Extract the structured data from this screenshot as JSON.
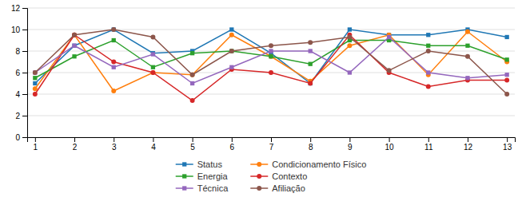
{
  "chart_data": {
    "type": "line",
    "x": [
      1,
      2,
      3,
      4,
      5,
      6,
      7,
      8,
      9,
      10,
      11,
      12,
      13
    ],
    "series": [
      {
        "name": "Status",
        "marker": "square",
        "values": [
          5,
          8.5,
          10,
          7.8,
          8,
          10,
          7.8,
          5,
          10,
          9.5,
          9.5,
          10,
          9.3
        ]
      },
      {
        "name": "Condicionamento Físico",
        "marker": "circle",
        "values": [
          4.5,
          9.5,
          4.3,
          6,
          5.8,
          9.5,
          7.5,
          5.2,
          8.5,
          9.5,
          5.8,
          9.8,
          7
        ]
      },
      {
        "name": "Energia",
        "marker": "square",
        "values": [
          5.5,
          7.5,
          9,
          6.5,
          7.8,
          8,
          7.5,
          6.8,
          9,
          9,
          8.5,
          8.5,
          7.2
        ]
      },
      {
        "name": "Contexto",
        "marker": "circle",
        "values": [
          4,
          9.5,
          7,
          6,
          3.4,
          6.3,
          6,
          5,
          9.5,
          6,
          4.7,
          5.3,
          5.3
        ]
      },
      {
        "name": "Técnica",
        "marker": "square",
        "values": [
          6,
          8.5,
          6.5,
          7.7,
          5,
          6.5,
          8,
          8,
          6,
          9.3,
          6,
          5.5,
          5.8
        ]
      },
      {
        "name": "Afiliação",
        "marker": "circle",
        "values": [
          6,
          9.5,
          10,
          9.3,
          5.8,
          8,
          8.5,
          8.8,
          9.3,
          6.2,
          8,
          7.5,
          4
        ]
      }
    ],
    "xlim": [
      0.8,
      13.2
    ],
    "xticks": [
      1,
      2,
      3,
      4,
      5,
      6,
      7,
      8,
      9,
      10,
      11,
      12,
      13
    ],
    "ylim": [
      0,
      12
    ],
    "yticks": [
      0,
      2,
      4,
      6,
      8,
      10,
      12
    ],
    "grid": true,
    "legend": "bottom"
  }
}
